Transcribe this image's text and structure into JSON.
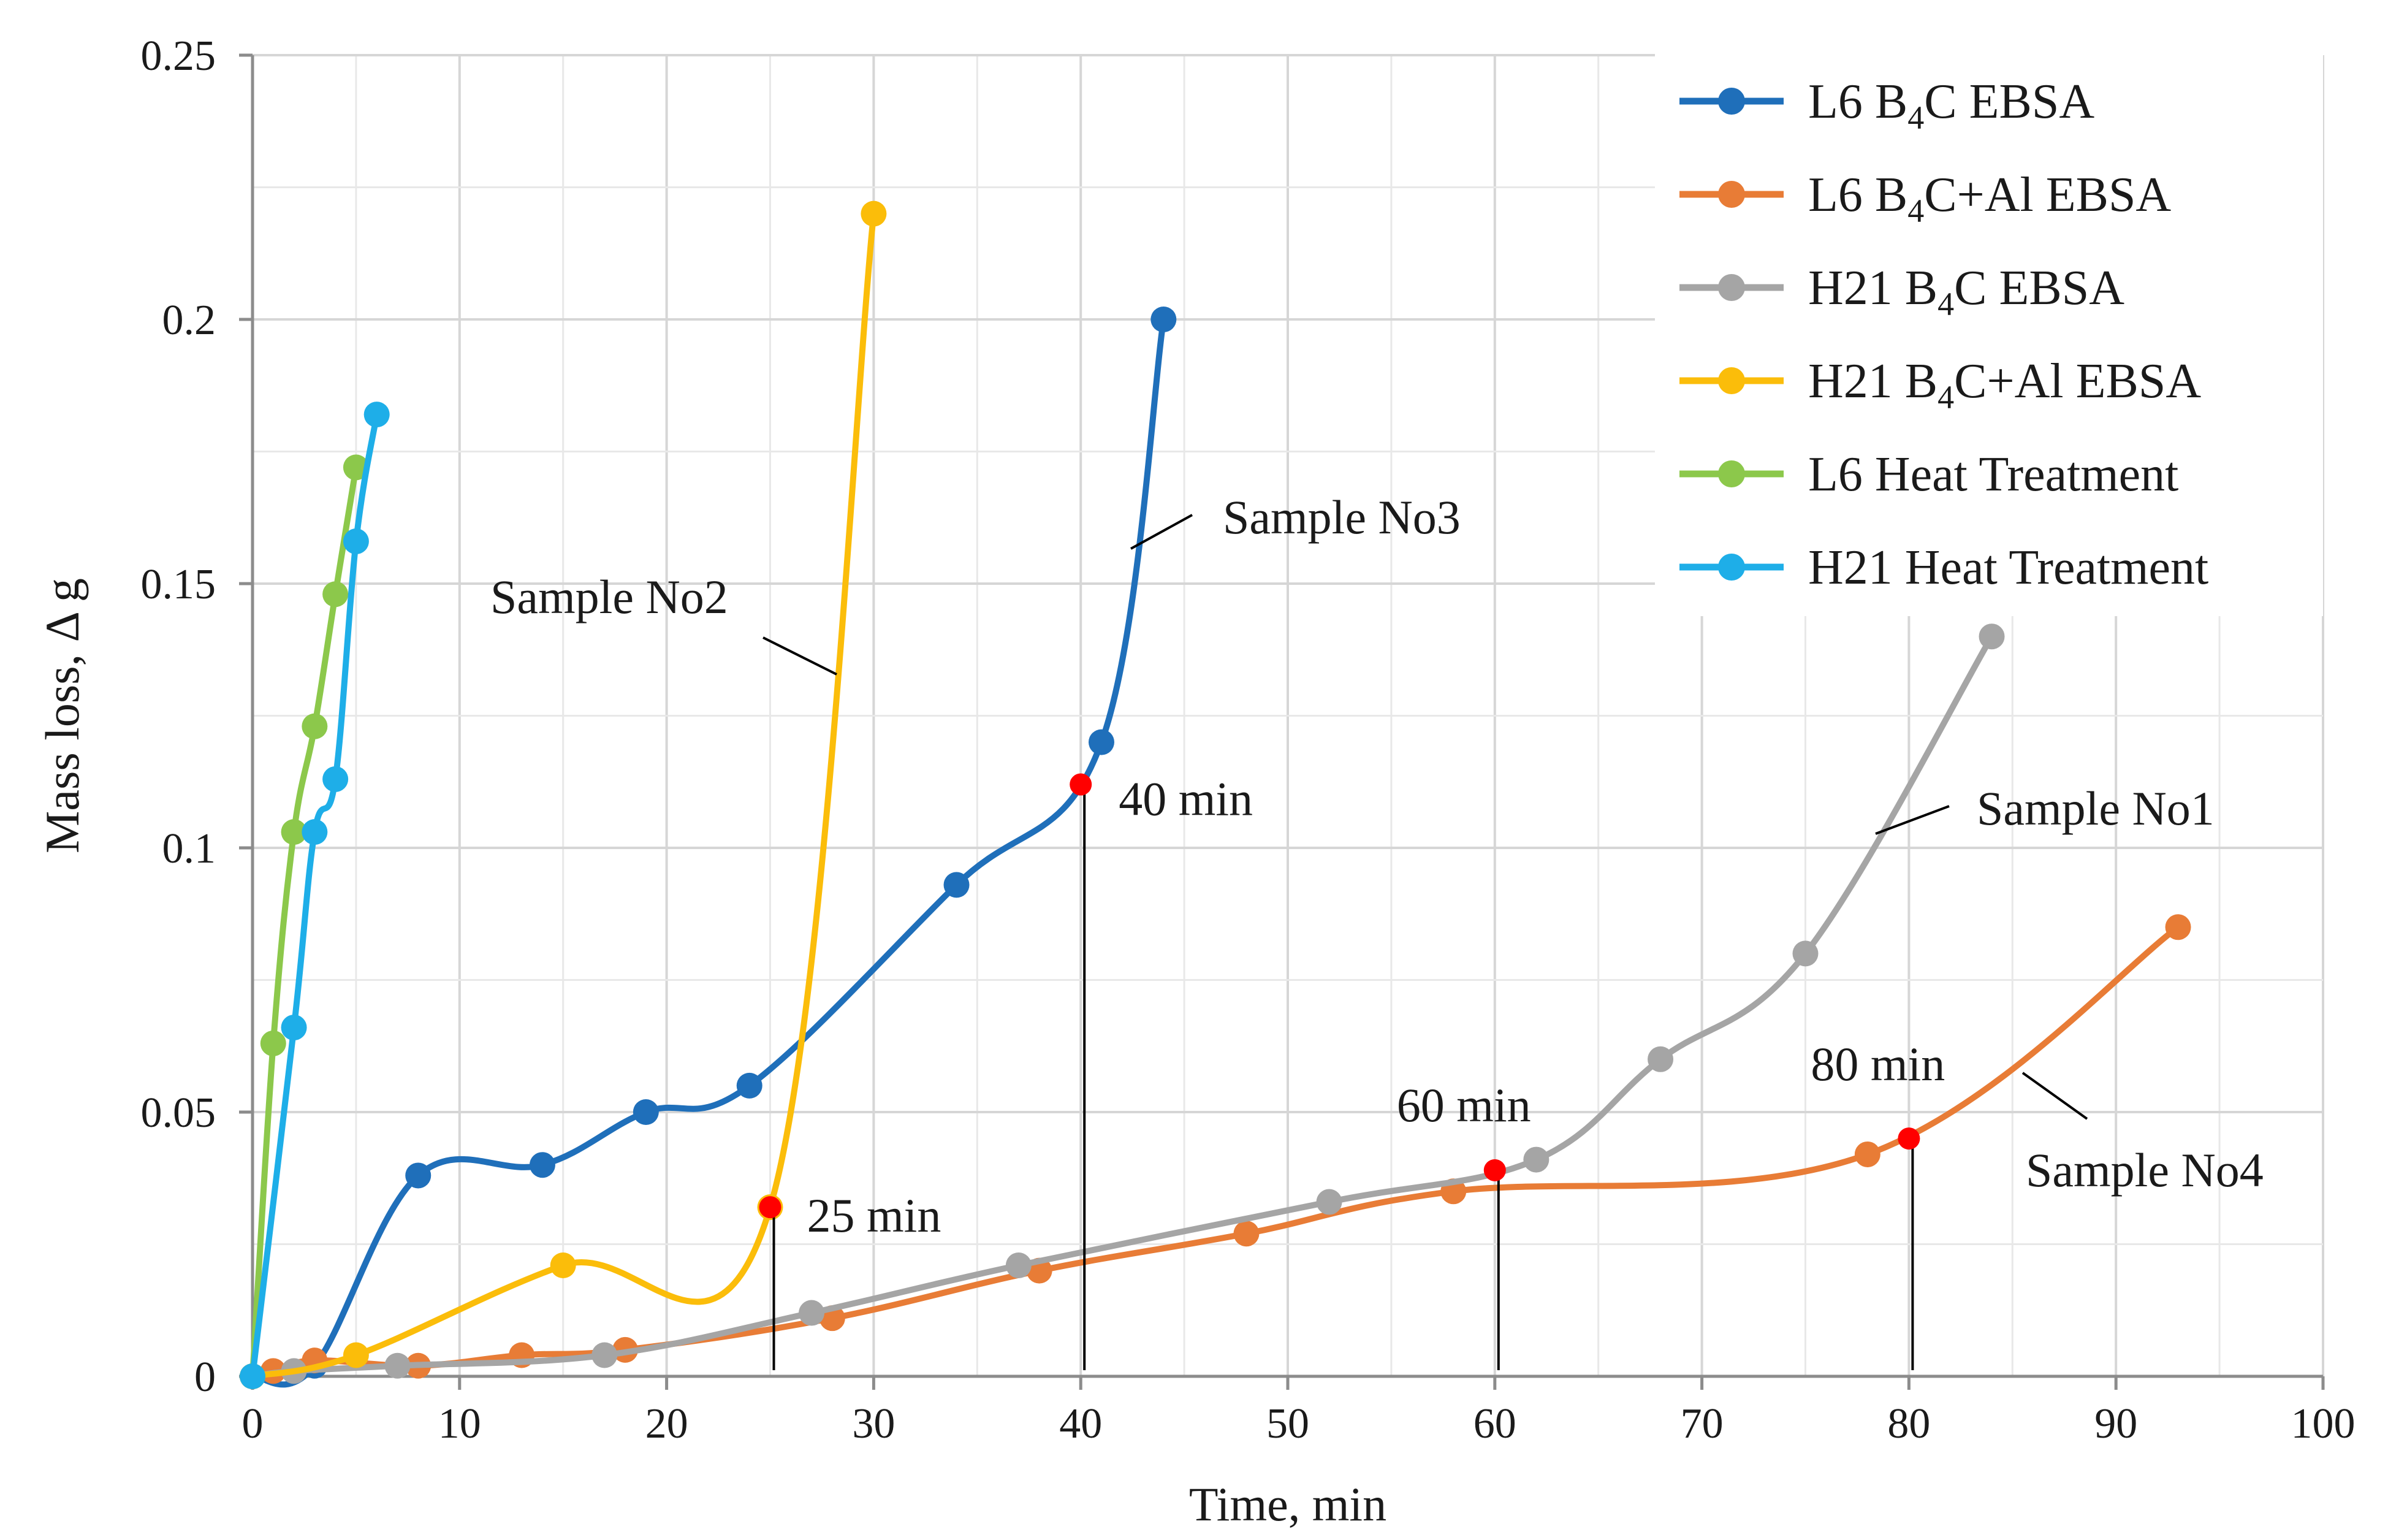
{
  "chart_data": {
    "type": "line",
    "title": "",
    "xlabel": "Time, min",
    "ylabel": "Mass loss, Δ g",
    "xlim": [
      0,
      100
    ],
    "ylim": [
      0,
      0.25
    ],
    "x_ticks": [
      "0",
      "10",
      "20",
      "30",
      "40",
      "50",
      "60",
      "70",
      "80",
      "90",
      "100"
    ],
    "y_ticks": [
      "0",
      "0.05",
      "0.1",
      "0.15",
      "0.2",
      "0.25"
    ],
    "grid": true,
    "legend_position": "top-right",
    "series": [
      {
        "name": "L6 B4C EBSA",
        "legend_main": "L6 B",
        "legend_sub": "4",
        "legend_rest": "C EBSA",
        "color": "#1f6fba",
        "x": [
          0,
          3,
          8,
          14,
          19,
          24,
          34,
          41,
          44
        ],
        "y": [
          0,
          0.002,
          0.038,
          0.04,
          0.05,
          0.055,
          0.093,
          0.12,
          0.2
        ]
      },
      {
        "name": "L6 B4C+Al EBSA",
        "legend_main": "L6 B",
        "legend_sub": "4",
        "legend_rest": "C+Al EBSA",
        "color": "#e87c36",
        "x": [
          0,
          1,
          3,
          8,
          13,
          18,
          28,
          38,
          48,
          58,
          78,
          93
        ],
        "y": [
          0,
          0.001,
          0.003,
          0.002,
          0.004,
          0.005,
          0.011,
          0.02,
          0.027,
          0.035,
          0.042,
          0.085
        ]
      },
      {
        "name": "H21 B4C EBSA",
        "legend_main": "H21 B",
        "legend_sub": "4",
        "legend_rest": "C EBSA",
        "color": "#a5a5a5",
        "x": [
          0,
          2,
          7,
          17,
          27,
          37,
          52,
          62,
          68,
          75,
          84
        ],
        "y": [
          0,
          0.001,
          0.002,
          0.004,
          0.012,
          0.021,
          0.033,
          0.041,
          0.06,
          0.08,
          0.14
        ]
      },
      {
        "name": "H21 B4C+Al EBSA",
        "legend_main": "H21 B",
        "legend_sub": "4",
        "legend_rest": "C+Al EBSA",
        "color": "#fbbd0a",
        "x": [
          0,
          5,
          15,
          25,
          30
        ],
        "y": [
          0,
          0.004,
          0.021,
          0.032,
          0.22
        ]
      },
      {
        "name": "L6 Heat Treatment",
        "legend_main": "L6 Heat Treatment",
        "legend_sub": "",
        "legend_rest": "",
        "color": "#8cc84b",
        "x": [
          0,
          1,
          2,
          3,
          4,
          5
        ],
        "y": [
          0,
          0.063,
          0.103,
          0.123,
          0.148,
          0.172
        ]
      },
      {
        "name": "H21 Heat Treatment",
        "legend_main": "H21 Heat Treatment",
        "legend_sub": "",
        "legend_rest": "",
        "color": "#1eaee8",
        "x": [
          0,
          2,
          3,
          4,
          5,
          6
        ],
        "y": [
          0,
          0.066,
          0.103,
          0.113,
          0.158,
          0.182
        ]
      }
    ],
    "markers": [
      {
        "label": "25 min",
        "x": 25,
        "y": 0.032,
        "color": "#ff0000"
      },
      {
        "label": "40 min",
        "x": 40,
        "y": 0.112,
        "color": "#ff0000"
      },
      {
        "label": "60 min",
        "x": 60,
        "y": 0.039,
        "color": "#ff0000"
      },
      {
        "label": "80 min",
        "x": 80,
        "y": 0.045,
        "color": "#ff0000"
      }
    ],
    "annotations": [
      {
        "text": "Sample No1",
        "series": "H21 B4C EBSA"
      },
      {
        "text": "Sample No2",
        "series": "H21 B4C+Al EBSA"
      },
      {
        "text": "Sample No3",
        "series": "L6 B4C EBSA"
      },
      {
        "text": "Sample No4",
        "series": "L6 B4C+Al EBSA"
      }
    ]
  }
}
